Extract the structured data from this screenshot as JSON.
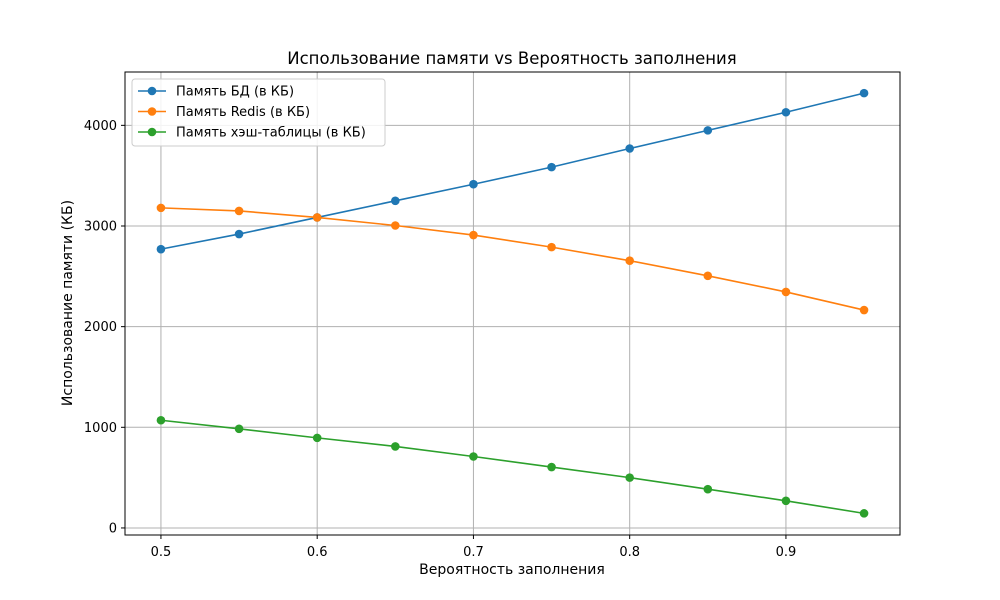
{
  "chart_data": {
    "type": "line",
    "title": "Использование памяти vs Вероятность заполнения",
    "xlabel": "Вероятность заполнения",
    "ylabel": "Использование памяти (КБ)",
    "xlim": [
      0.477,
      0.973
    ],
    "ylim": [
      -70,
      4530
    ],
    "xticks": [
      0.5,
      0.6,
      0.7,
      0.8,
      0.9
    ],
    "yticks": [
      0,
      1000,
      2000,
      3000,
      4000
    ],
    "grid": true,
    "legend_position": "top-left",
    "x": [
      0.5,
      0.55,
      0.6,
      0.65,
      0.7,
      0.75,
      0.8,
      0.85,
      0.9,
      0.95
    ],
    "series": [
      {
        "name": "Память БД (в КБ)",
        "color": "#1f77b4",
        "values": [
          2770,
          2920,
          3085,
          3250,
          3415,
          3585,
          3770,
          3950,
          4130,
          4320
        ]
      },
      {
        "name": "Память Redis (в КБ)",
        "color": "#ff7f0e",
        "values": [
          3180,
          3150,
          3085,
          3005,
          2910,
          2790,
          2655,
          2505,
          2345,
          2165
        ]
      },
      {
        "name": "Память хэш-таблицы (в КБ)",
        "color": "#2ca02c",
        "values": [
          1070,
          985,
          895,
          810,
          710,
          605,
          500,
          385,
          270,
          145
        ]
      }
    ]
  }
}
